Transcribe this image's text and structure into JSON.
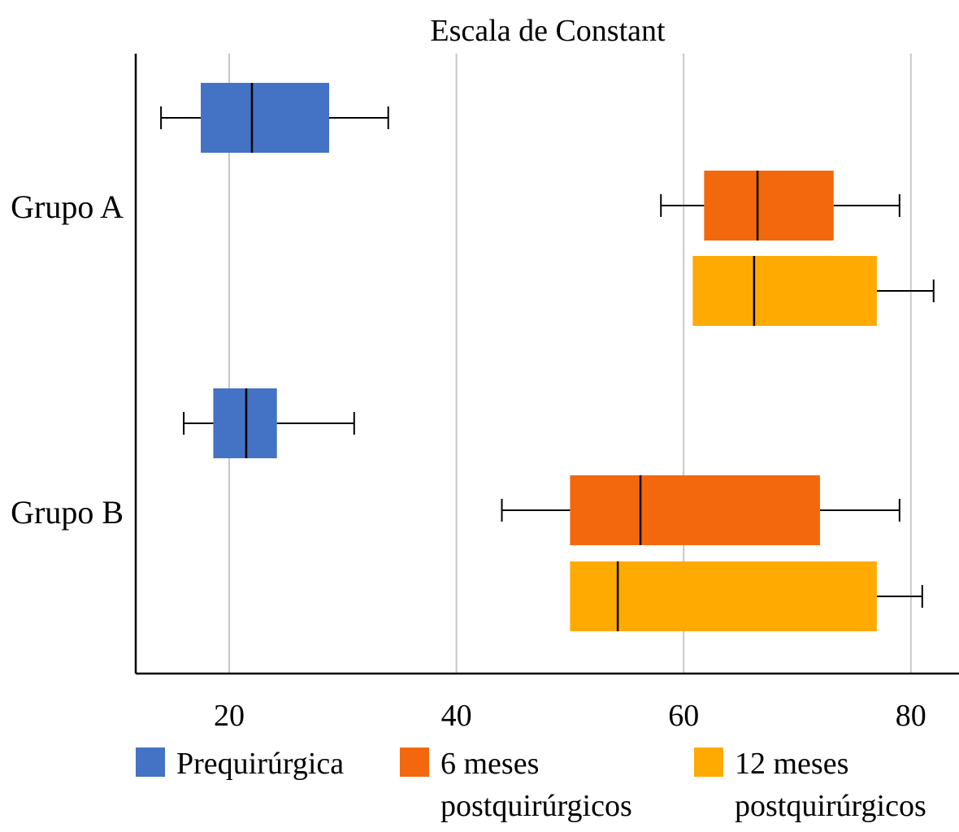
{
  "chart_data": {
    "type": "boxplot",
    "orientation": "horizontal",
    "title": "Escala de Constant",
    "xlim": [
      12,
      84
    ],
    "xticks": [
      20,
      40,
      60,
      80
    ],
    "grid": true,
    "legend_position": "bottom",
    "categories": [
      "Grupo A",
      "Grupo B"
    ],
    "series": [
      {
        "name": "Prequirúrgica",
        "color": "#4472c4",
        "boxes": [
          {
            "category": "Grupo A",
            "min": 14,
            "q1": 17.5,
            "median": 22,
            "q3": 28.8,
            "max": 34
          },
          {
            "category": "Grupo B",
            "min": 16,
            "q1": 18.6,
            "median": 21.5,
            "q3": 24.2,
            "max": 31
          }
        ]
      },
      {
        "name": "6 meses postquirúrgicos",
        "color": "#f4680d",
        "boxes": [
          {
            "category": "Grupo A",
            "min": 58,
            "q1": 61.8,
            "median": 66.5,
            "q3": 73.2,
            "max": 79
          },
          {
            "category": "Grupo B",
            "min": 44,
            "q1": 50,
            "median": 56.2,
            "q3": 72,
            "max": 79
          }
        ]
      },
      {
        "name": "12 meses postquirúrgicos",
        "color": "#ffaa00",
        "boxes": [
          {
            "category": "Grupo A",
            "min": 60.8,
            "q1": 60.8,
            "median": 66.2,
            "q3": 77,
            "max": 82
          },
          {
            "category": "Grupo B",
            "min": 50,
            "q1": 50,
            "median": 54.2,
            "q3": 77,
            "max": 81
          }
        ]
      }
    ],
    "legend": [
      {
        "lines": [
          "Prequirúrgica"
        ],
        "color": "#4472c4"
      },
      {
        "lines": [
          "6 meses",
          "postquirúrgicos"
        ],
        "color": "#f4680d"
      },
      {
        "lines": [
          "12 meses",
          "postquirúrgicos"
        ],
        "color": "#ffaa00"
      }
    ]
  }
}
